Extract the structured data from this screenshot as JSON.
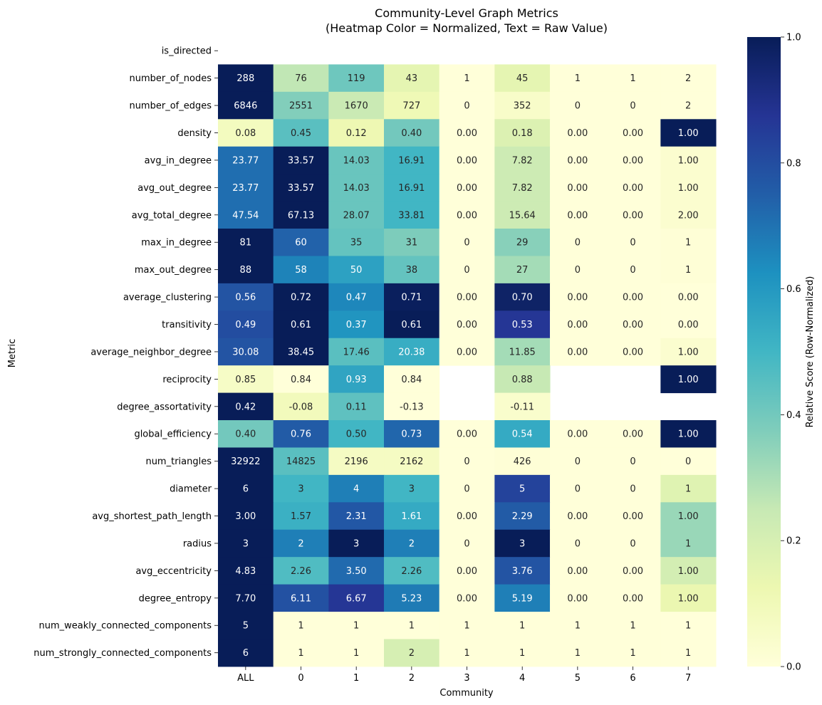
{
  "chart_data": {
    "type": "heatmap",
    "title": "Community-Level Graph Metrics",
    "subtitle": "(Heatmap Color = Normalized, Text = Raw Value)",
    "xlabel": "Community",
    "ylabel": "Metric",
    "colorbar_label": "Relative Score (Row-Normalized)",
    "colorbar_range": [
      0,
      1
    ],
    "colorbar_ticks": [
      "0.0",
      "0.2",
      "0.4",
      "0.6",
      "0.8",
      "1.0"
    ],
    "colormap": "YlGnBu",
    "colormap_stops": [
      "#ffffd9",
      "#edf8b1",
      "#c7e9b4",
      "#7fcdbb",
      "#41b6c4",
      "#1d91c0",
      "#225ea8",
      "#253494",
      "#081d58"
    ],
    "columns": [
      "ALL",
      "0",
      "1",
      "2",
      "3",
      "4",
      "5",
      "6",
      "7"
    ],
    "rows": [
      "is_directed",
      "number_of_nodes",
      "number_of_edges",
      "density",
      "avg_in_degree",
      "avg_out_degree",
      "avg_total_degree",
      "max_in_degree",
      "max_out_degree",
      "average_clustering",
      "transitivity",
      "average_neighbor_degree",
      "reciprocity",
      "degree_assortativity",
      "global_efficiency",
      "num_triangles",
      "diameter",
      "avg_shortest_path_length",
      "radius",
      "avg_eccentricity",
      "degree_entropy",
      "num_weakly_connected_components",
      "num_strongly_connected_components"
    ],
    "labels": [
      [
        "",
        "",
        "",
        "",
        "",
        "",
        "",
        "",
        ""
      ],
      [
        "288",
        "76",
        "119",
        "43",
        "1",
        "45",
        "1",
        "1",
        "2"
      ],
      [
        "6846",
        "2551",
        "1670",
        "727",
        "0",
        "352",
        "0",
        "0",
        "2"
      ],
      [
        "0.08",
        "0.45",
        "0.12",
        "0.40",
        "0.00",
        "0.18",
        "0.00",
        "0.00",
        "1.00"
      ],
      [
        "23.77",
        "33.57",
        "14.03",
        "16.91",
        "0.00",
        "7.82",
        "0.00",
        "0.00",
        "1.00"
      ],
      [
        "23.77",
        "33.57",
        "14.03",
        "16.91",
        "0.00",
        "7.82",
        "0.00",
        "0.00",
        "1.00"
      ],
      [
        "47.54",
        "67.13",
        "28.07",
        "33.81",
        "0.00",
        "15.64",
        "0.00",
        "0.00",
        "2.00"
      ],
      [
        "81",
        "60",
        "35",
        "31",
        "0",
        "29",
        "0",
        "0",
        "1"
      ],
      [
        "88",
        "58",
        "50",
        "38",
        "0",
        "27",
        "0",
        "0",
        "1"
      ],
      [
        "0.56",
        "0.72",
        "0.47",
        "0.71",
        "0.00",
        "0.70",
        "0.00",
        "0.00",
        "0.00"
      ],
      [
        "0.49",
        "0.61",
        "0.37",
        "0.61",
        "0.00",
        "0.53",
        "0.00",
        "0.00",
        "0.00"
      ],
      [
        "30.08",
        "38.45",
        "17.46",
        "20.38",
        "0.00",
        "11.85",
        "0.00",
        "0.00",
        "1.00"
      ],
      [
        "0.85",
        "0.84",
        "0.93",
        "0.84",
        "",
        "0.88",
        "",
        "",
        "1.00"
      ],
      [
        "0.42",
        "-0.08",
        "0.11",
        "-0.13",
        "",
        "-0.11",
        "",
        "",
        ""
      ],
      [
        "0.40",
        "0.76",
        "0.50",
        "0.73",
        "0.00",
        "0.54",
        "0.00",
        "0.00",
        "1.00"
      ],
      [
        "32922",
        "14825",
        "2196",
        "2162",
        "0",
        "426",
        "0",
        "0",
        "0"
      ],
      [
        "6",
        "3",
        "4",
        "3",
        "0",
        "5",
        "0",
        "0",
        "1"
      ],
      [
        "3.00",
        "1.57",
        "2.31",
        "1.61",
        "0.00",
        "2.29",
        "0.00",
        "0.00",
        "1.00"
      ],
      [
        "3",
        "2",
        "3",
        "2",
        "0",
        "3",
        "0",
        "0",
        "1"
      ],
      [
        "4.83",
        "2.26",
        "3.50",
        "2.26",
        "0.00",
        "3.76",
        "0.00",
        "0.00",
        "1.00"
      ],
      [
        "7.70",
        "6.11",
        "6.67",
        "5.23",
        "0.00",
        "5.19",
        "0.00",
        "0.00",
        "1.00"
      ],
      [
        "5",
        "1",
        "1",
        "1",
        "1",
        "1",
        "1",
        "1",
        "1"
      ],
      [
        "6",
        "1",
        "1",
        "2",
        "1",
        "1",
        "1",
        "1",
        "1"
      ]
    ],
    "values": [
      [
        null,
        null,
        null,
        null,
        null,
        null,
        null,
        null,
        null
      ],
      [
        1.0,
        0.26,
        0.41,
        0.15,
        0.0,
        0.15,
        0.0,
        0.0,
        0.0
      ],
      [
        1.0,
        0.37,
        0.24,
        0.11,
        0.0,
        0.05,
        0.0,
        0.0,
        0.0
      ],
      [
        0.08,
        0.45,
        0.12,
        0.4,
        0.0,
        0.18,
        0.0,
        0.0,
        1.0
      ],
      [
        0.71,
        1.0,
        0.42,
        0.5,
        0.0,
        0.23,
        0.0,
        0.0,
        0.03
      ],
      [
        0.71,
        1.0,
        0.42,
        0.5,
        0.0,
        0.23,
        0.0,
        0.0,
        0.03
      ],
      [
        0.71,
        1.0,
        0.42,
        0.5,
        0.0,
        0.23,
        0.0,
        0.0,
        0.03
      ],
      [
        1.0,
        0.74,
        0.43,
        0.38,
        0.0,
        0.36,
        0.0,
        0.0,
        0.01
      ],
      [
        1.0,
        0.66,
        0.57,
        0.43,
        0.0,
        0.31,
        0.0,
        0.0,
        0.01
      ],
      [
        0.78,
        1.0,
        0.65,
        0.99,
        0.0,
        0.97,
        0.0,
        0.0,
        0.0
      ],
      [
        0.8,
        1.0,
        0.61,
        1.0,
        0.0,
        0.87,
        0.0,
        0.0,
        0.0
      ],
      [
        0.78,
        1.0,
        0.45,
        0.53,
        0.0,
        0.31,
        0.0,
        0.0,
        0.03
      ],
      [
        0.06,
        0.0,
        0.56,
        0.0,
        null,
        0.25,
        null,
        null,
        1.0
      ],
      [
        1.0,
        0.09,
        0.44,
        0.0,
        null,
        0.04,
        null,
        null,
        null
      ],
      [
        0.4,
        0.76,
        0.5,
        0.73,
        0.0,
        0.54,
        0.0,
        0.0,
        1.0
      ],
      [
        1.0,
        0.45,
        0.07,
        0.07,
        0.0,
        0.01,
        0.0,
        0.0,
        0.0
      ],
      [
        1.0,
        0.5,
        0.67,
        0.5,
        0.0,
        0.83,
        0.0,
        0.0,
        0.17
      ],
      [
        1.0,
        0.52,
        0.77,
        0.54,
        0.0,
        0.76,
        0.0,
        0.0,
        0.33
      ],
      [
        1.0,
        0.67,
        1.0,
        0.67,
        0.0,
        1.0,
        0.0,
        0.0,
        0.33
      ],
      [
        1.0,
        0.47,
        0.72,
        0.47,
        0.0,
        0.78,
        0.0,
        0.0,
        0.21
      ],
      [
        1.0,
        0.79,
        0.87,
        0.68,
        0.0,
        0.67,
        0.0,
        0.0,
        0.13
      ],
      [
        1.0,
        0.0,
        0.0,
        0.0,
        0.0,
        0.0,
        0.0,
        0.0,
        0.0
      ],
      [
        1.0,
        0.0,
        0.0,
        0.2,
        0.0,
        0.0,
        0.0,
        0.0,
        0.0
      ]
    ]
  }
}
